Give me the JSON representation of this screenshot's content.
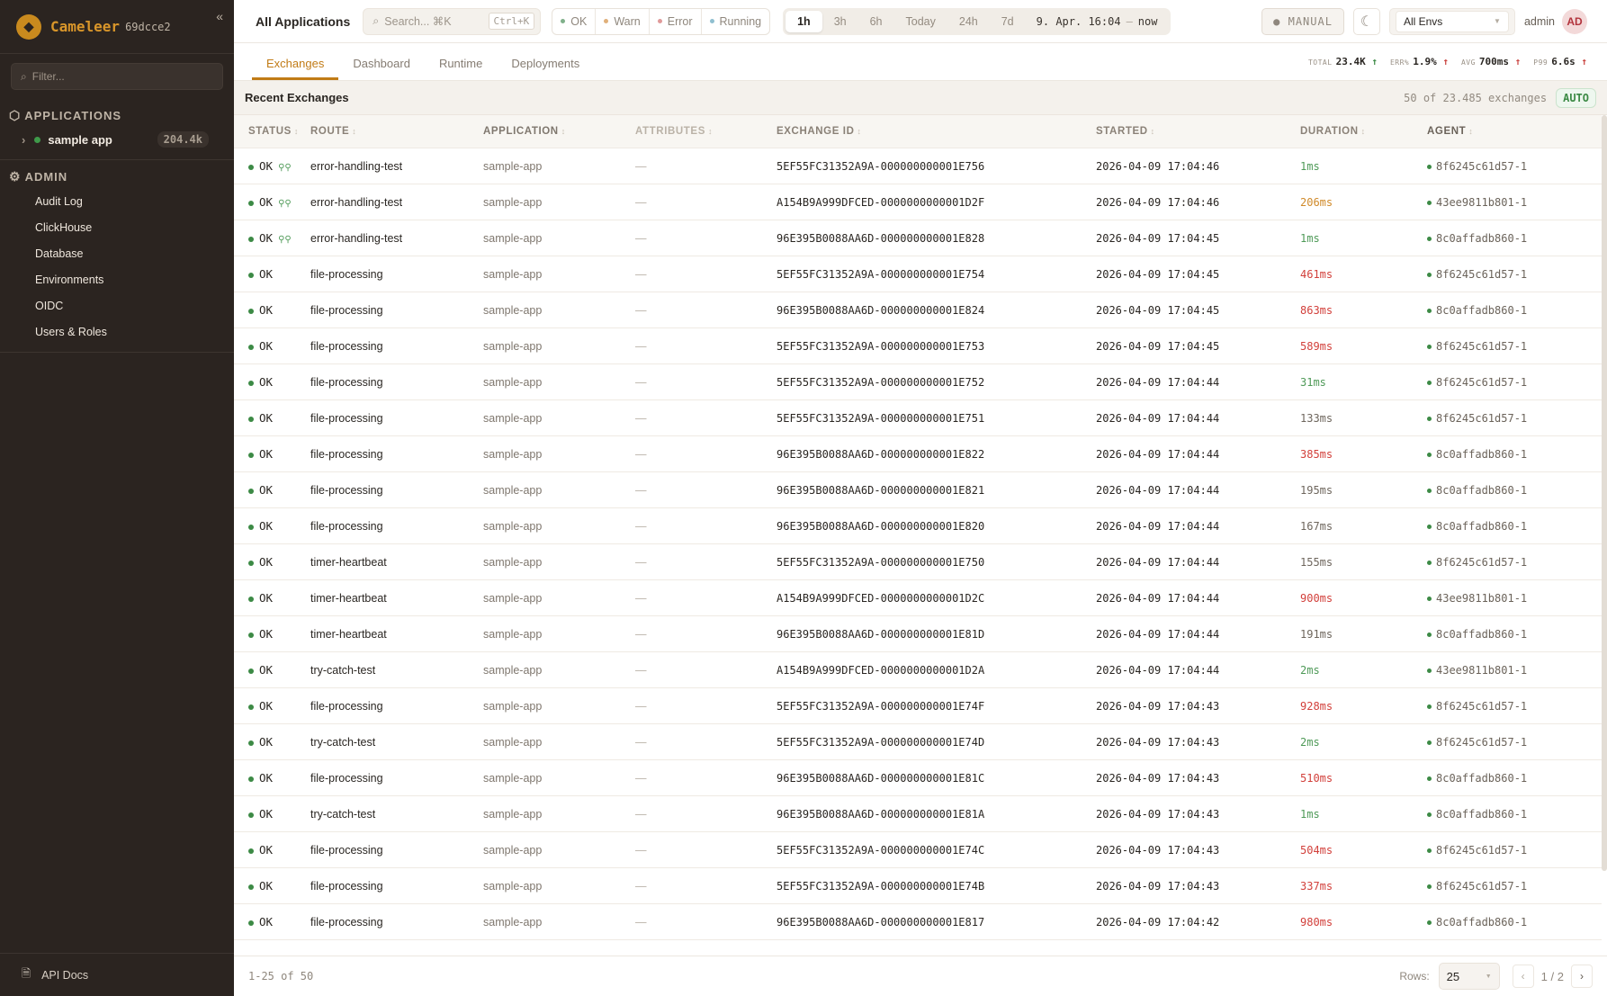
{
  "sidebar": {
    "brand": "Cameleer",
    "version": "69dcce2",
    "filter_placeholder": "Filter...",
    "applications_label": "APPLICATIONS",
    "apps": [
      {
        "name": "sample app",
        "count": "204.4k",
        "status_color": "#3f9a4a"
      }
    ],
    "admin_label": "ADMIN",
    "admin_items": [
      "Audit Log",
      "ClickHouse",
      "Database",
      "Environments",
      "OIDC",
      "Users & Roles"
    ],
    "api_docs": "API Docs"
  },
  "topbar": {
    "title": "All Applications",
    "search_placeholder": "Search... ⌘K",
    "search_shortcut": "Ctrl+K",
    "status_filters": [
      {
        "label": "OK",
        "color": "#7fb08a"
      },
      {
        "label": "Warn",
        "color": "#e0b07a"
      },
      {
        "label": "Error",
        "color": "#e09a9a"
      },
      {
        "label": "Running",
        "color": "#8fbfd0"
      }
    ],
    "ranges": [
      "1h",
      "3h",
      "6h",
      "Today",
      "24h",
      "7d"
    ],
    "active_range": "1h",
    "date_from": "9. Apr. 16:04",
    "date_sep": "—",
    "date_to": "now",
    "manual_label": "● MANUAL",
    "env_select": "All Envs",
    "user": "admin",
    "avatar": "AD"
  },
  "tabs": [
    "Exchanges",
    "Dashboard",
    "Runtime",
    "Deployments"
  ],
  "active_tab": "Exchanges",
  "kpis": [
    {
      "label": "TOTAL",
      "value": "23.4K",
      "trend": "↑",
      "trend_color": "green"
    },
    {
      "label": "ERR%",
      "value": "1.9%",
      "trend": "↑",
      "trend_color": "red"
    },
    {
      "label": "AVG",
      "value": "700ms",
      "trend": "↑",
      "trend_color": "red"
    },
    {
      "label": "P99",
      "value": "6.6s",
      "trend": "↑",
      "trend_color": "red"
    }
  ],
  "recent": {
    "title": "Recent Exchanges",
    "count": "50 of 23.485 exchanges",
    "auto": "AUTO"
  },
  "columns": [
    "STATUS",
    "ROUTE",
    "APPLICATION",
    "ATTRIBUTES",
    "EXCHANGE ID",
    "STARTED",
    "DURATION",
    "AGENT"
  ],
  "rows": [
    {
      "status": "OK",
      "trace": true,
      "route": "error-handling-test",
      "app": "sample-app",
      "attrs": "—",
      "id": "5EF55FC31352A9A-000000000001E756",
      "started": "2026-04-09 17:04:46",
      "duration": "1ms",
      "dcolor": "green",
      "agent": "8f6245c61d57-1"
    },
    {
      "status": "OK",
      "trace": true,
      "route": "error-handling-test",
      "app": "sample-app",
      "attrs": "—",
      "id": "A154B9A999DFCED-0000000000001D2F",
      "started": "2026-04-09 17:04:46",
      "duration": "206ms",
      "dcolor": "orange",
      "agent": "43ee9811b801-1"
    },
    {
      "status": "OK",
      "trace": true,
      "route": "error-handling-test",
      "app": "sample-app",
      "attrs": "—",
      "id": "96E395B0088AA6D-000000000001E828",
      "started": "2026-04-09 17:04:45",
      "duration": "1ms",
      "dcolor": "green",
      "agent": "8c0affadb860-1"
    },
    {
      "status": "OK",
      "trace": false,
      "route": "file-processing",
      "app": "sample-app",
      "attrs": "—",
      "id": "5EF55FC31352A9A-000000000001E754",
      "started": "2026-04-09 17:04:45",
      "duration": "461ms",
      "dcolor": "red",
      "agent": "8f6245c61d57-1"
    },
    {
      "status": "OK",
      "trace": false,
      "route": "file-processing",
      "app": "sample-app",
      "attrs": "—",
      "id": "96E395B0088AA6D-000000000001E824",
      "started": "2026-04-09 17:04:45",
      "duration": "863ms",
      "dcolor": "red",
      "agent": "8c0affadb860-1"
    },
    {
      "status": "OK",
      "trace": false,
      "route": "file-processing",
      "app": "sample-app",
      "attrs": "—",
      "id": "5EF55FC31352A9A-000000000001E753",
      "started": "2026-04-09 17:04:45",
      "duration": "589ms",
      "dcolor": "red",
      "agent": "8f6245c61d57-1"
    },
    {
      "status": "OK",
      "trace": false,
      "route": "file-processing",
      "app": "sample-app",
      "attrs": "—",
      "id": "5EF55FC31352A9A-000000000001E752",
      "started": "2026-04-09 17:04:44",
      "duration": "31ms",
      "dcolor": "green",
      "agent": "8f6245c61d57-1"
    },
    {
      "status": "OK",
      "trace": false,
      "route": "file-processing",
      "app": "sample-app",
      "attrs": "—",
      "id": "5EF55FC31352A9A-000000000001E751",
      "started": "2026-04-09 17:04:44",
      "duration": "133ms",
      "dcolor": "gray",
      "agent": "8f6245c61d57-1"
    },
    {
      "status": "OK",
      "trace": false,
      "route": "file-processing",
      "app": "sample-app",
      "attrs": "—",
      "id": "96E395B0088AA6D-000000000001E822",
      "started": "2026-04-09 17:04:44",
      "duration": "385ms",
      "dcolor": "red",
      "agent": "8c0affadb860-1"
    },
    {
      "status": "OK",
      "trace": false,
      "route": "file-processing",
      "app": "sample-app",
      "attrs": "—",
      "id": "96E395B0088AA6D-000000000001E821",
      "started": "2026-04-09 17:04:44",
      "duration": "195ms",
      "dcolor": "gray",
      "agent": "8c0affadb860-1"
    },
    {
      "status": "OK",
      "trace": false,
      "route": "file-processing",
      "app": "sample-app",
      "attrs": "—",
      "id": "96E395B0088AA6D-000000000001E820",
      "started": "2026-04-09 17:04:44",
      "duration": "167ms",
      "dcolor": "gray",
      "agent": "8c0affadb860-1"
    },
    {
      "status": "OK",
      "trace": false,
      "route": "timer-heartbeat",
      "app": "sample-app",
      "attrs": "—",
      "id": "5EF55FC31352A9A-000000000001E750",
      "started": "2026-04-09 17:04:44",
      "duration": "155ms",
      "dcolor": "gray",
      "agent": "8f6245c61d57-1"
    },
    {
      "status": "OK",
      "trace": false,
      "route": "timer-heartbeat",
      "app": "sample-app",
      "attrs": "—",
      "id": "A154B9A999DFCED-0000000000001D2C",
      "started": "2026-04-09 17:04:44",
      "duration": "900ms",
      "dcolor": "red",
      "agent": "43ee9811b801-1"
    },
    {
      "status": "OK",
      "trace": false,
      "route": "timer-heartbeat",
      "app": "sample-app",
      "attrs": "—",
      "id": "96E395B0088AA6D-000000000001E81D",
      "started": "2026-04-09 17:04:44",
      "duration": "191ms",
      "dcolor": "gray",
      "agent": "8c0affadb860-1"
    },
    {
      "status": "OK",
      "trace": false,
      "route": "try-catch-test",
      "app": "sample-app",
      "attrs": "—",
      "id": "A154B9A999DFCED-0000000000001D2A",
      "started": "2026-04-09 17:04:44",
      "duration": "2ms",
      "dcolor": "green",
      "agent": "43ee9811b801-1"
    },
    {
      "status": "OK",
      "trace": false,
      "route": "file-processing",
      "app": "sample-app",
      "attrs": "—",
      "id": "5EF55FC31352A9A-000000000001E74F",
      "started": "2026-04-09 17:04:43",
      "duration": "928ms",
      "dcolor": "red",
      "agent": "8f6245c61d57-1"
    },
    {
      "status": "OK",
      "trace": false,
      "route": "try-catch-test",
      "app": "sample-app",
      "attrs": "—",
      "id": "5EF55FC31352A9A-000000000001E74D",
      "started": "2026-04-09 17:04:43",
      "duration": "2ms",
      "dcolor": "green",
      "agent": "8f6245c61d57-1"
    },
    {
      "status": "OK",
      "trace": false,
      "route": "file-processing",
      "app": "sample-app",
      "attrs": "—",
      "id": "96E395B0088AA6D-000000000001E81C",
      "started": "2026-04-09 17:04:43",
      "duration": "510ms",
      "dcolor": "red",
      "agent": "8c0affadb860-1"
    },
    {
      "status": "OK",
      "trace": false,
      "route": "try-catch-test",
      "app": "sample-app",
      "attrs": "—",
      "id": "96E395B0088AA6D-000000000001E81A",
      "started": "2026-04-09 17:04:43",
      "duration": "1ms",
      "dcolor": "green",
      "agent": "8c0affadb860-1"
    },
    {
      "status": "OK",
      "trace": false,
      "route": "file-processing",
      "app": "sample-app",
      "attrs": "—",
      "id": "5EF55FC31352A9A-000000000001E74C",
      "started": "2026-04-09 17:04:43",
      "duration": "504ms",
      "dcolor": "red",
      "agent": "8f6245c61d57-1"
    },
    {
      "status": "OK",
      "trace": false,
      "route": "file-processing",
      "app": "sample-app",
      "attrs": "—",
      "id": "5EF55FC31352A9A-000000000001E74B",
      "started": "2026-04-09 17:04:43",
      "duration": "337ms",
      "dcolor": "red",
      "agent": "8f6245c61d57-1"
    },
    {
      "status": "OK",
      "trace": false,
      "route": "file-processing",
      "app": "sample-app",
      "attrs": "—",
      "id": "96E395B0088AA6D-000000000001E817",
      "started": "2026-04-09 17:04:42",
      "duration": "980ms",
      "dcolor": "red",
      "agent": "8c0affadb860-1"
    }
  ],
  "footer": {
    "range": "1-25 of 50",
    "rows_label": "Rows:",
    "rows_value": "25",
    "page": "1",
    "page_sep": "/",
    "pages": "2"
  }
}
